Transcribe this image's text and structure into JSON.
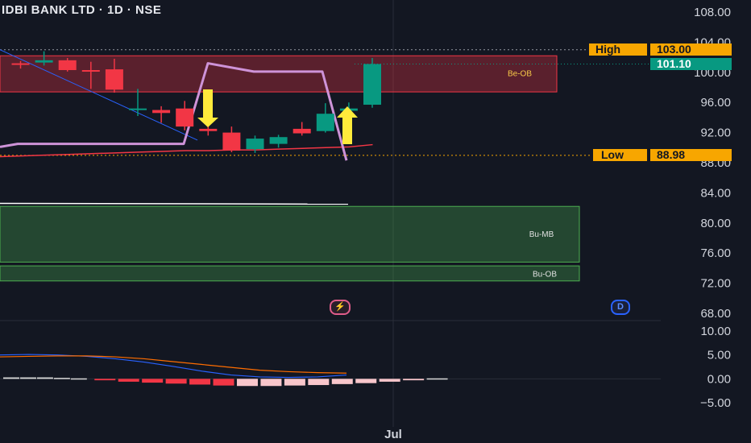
{
  "header": {
    "title": "IDBI BANK LTD · 1D · NSE"
  },
  "price_axis": {
    "ticks": [
      "108.00",
      "104.00",
      "100.00",
      "96.00",
      "92.00",
      "88.00",
      "84.00",
      "80.00",
      "76.00",
      "72.00",
      "68.00"
    ]
  },
  "indicator_axis": {
    "ticks": [
      "10.00",
      "5.00",
      "0.00",
      "−5.00"
    ]
  },
  "time_axis": {
    "label": "Jul"
  },
  "levels": {
    "high": {
      "label": "High",
      "value": "103.00"
    },
    "low": {
      "label": "Low",
      "value": "88.98"
    },
    "last_price": "101.10"
  },
  "zones": {
    "bear_ob": "Be-OB",
    "bull_mb": "Bu-MB",
    "bull_ob": "Bu-OB"
  },
  "icons": {
    "flash": "lightning-icon",
    "dividend": "D"
  },
  "colors": {
    "up": "#089981",
    "down": "#f23645",
    "bg": "#131722",
    "accent": "#f7a600",
    "step_line": "#ce93d8"
  },
  "chart_data": [
    {
      "type": "candlestick",
      "title": "IDBI BANK LTD · 1D · NSE",
      "ylim": [
        68,
        108
      ],
      "candles": [
        {
          "o": 101.2,
          "h": 101.5,
          "l": 100.5,
          "c": 101.0
        },
        {
          "o": 101.3,
          "h": 102.8,
          "l": 100.9,
          "c": 101.6
        },
        {
          "o": 101.6,
          "h": 101.9,
          "l": 100.1,
          "c": 100.3
        },
        {
          "o": 100.3,
          "h": 101.4,
          "l": 97.8,
          "c": 100.1
        },
        {
          "o": 100.4,
          "h": 101.8,
          "l": 97.3,
          "c": 97.7
        },
        {
          "o": 95.0,
          "h": 97.8,
          "l": 94.2,
          "c": 95.2
        },
        {
          "o": 95.0,
          "h": 95.5,
          "l": 93.3,
          "c": 94.6
        },
        {
          "o": 95.2,
          "h": 96.2,
          "l": 92.3,
          "c": 92.8
        },
        {
          "o": 92.5,
          "h": 93.4,
          "l": 91.6,
          "c": 92.2
        },
        {
          "o": 92.0,
          "h": 92.8,
          "l": 89.4,
          "c": 89.6
        },
        {
          "o": 89.8,
          "h": 91.6,
          "l": 89.3,
          "c": 91.2
        },
        {
          "o": 90.5,
          "h": 91.7,
          "l": 90.0,
          "c": 91.4
        },
        {
          "o": 92.5,
          "h": 93.4,
          "l": 91.6,
          "c": 91.9
        },
        {
          "o": 92.2,
          "h": 95.9,
          "l": 92.0,
          "c": 94.5
        },
        {
          "o": 94.9,
          "h": 96.0,
          "l": 93.9,
          "c": 95.2
        },
        {
          "o": 95.7,
          "h": 101.9,
          "l": 95.3,
          "c": 101.1
        }
      ],
      "overlays": {
        "step_line": [
          90.1,
          90.5,
          90.5,
          90.5,
          90.5,
          90.5,
          90.5,
          90.5,
          90.5,
          101.2,
          101.0,
          100.1,
          100.1,
          100.1,
          100.1,
          88.3
        ],
        "red_line": [
          88.8,
          89.0,
          89.1,
          89.2,
          89.3,
          89.4,
          89.5,
          89.6,
          89.6,
          89.7,
          89.7,
          89.8,
          89.9,
          90.0,
          90.1,
          90.4
        ],
        "white_line": [
          82.6,
          82.5
        ],
        "trend_line": [
          [
            103.0,
            91.0
          ]
        ]
      },
      "levels": {
        "high": 103.0,
        "low": 88.98,
        "last": 101.1
      }
    },
    {
      "type": "bar",
      "ylim": [
        -7,
        12
      ],
      "ticks": [
        10,
        5,
        0,
        -5
      ],
      "histogram": [
        0.3,
        0.3,
        0.3,
        0.2,
        0.1,
        -0.3,
        -0.6,
        -0.8,
        -1.0,
        -1.2,
        -1.4,
        -1.5,
        -1.5,
        -1.4,
        -1.3,
        -1.1,
        -0.9,
        -0.6,
        -0.3,
        0.1
      ],
      "series": [
        {
          "values": [
            5.0,
            5.1,
            5.0,
            4.7,
            4.2,
            3.5,
            2.6,
            1.6,
            0.8,
            0.4,
            0.3,
            0.4,
            0.8
          ]
        },
        {
          "values": [
            4.6,
            4.7,
            4.8,
            4.8,
            4.6,
            4.2,
            3.6,
            3.0,
            2.4,
            1.8,
            1.5,
            1.3,
            1.2
          ]
        }
      ]
    }
  ]
}
